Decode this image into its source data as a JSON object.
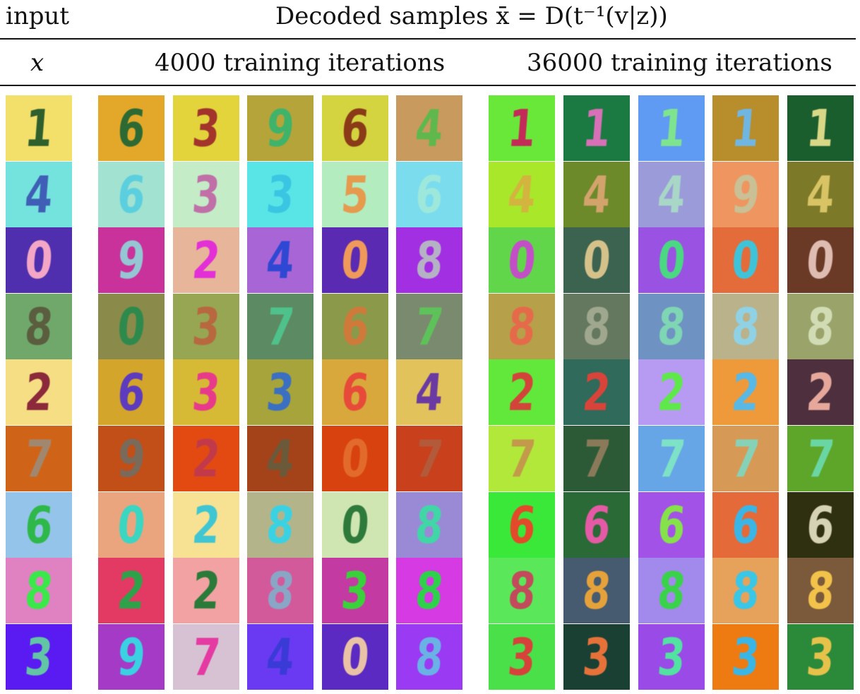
{
  "header": {
    "input_label": "input",
    "decoded_label": "Decoded samples x̄ = D(t⁻¹(v|z))",
    "x_label": "x",
    "group_4000_label": "4000 training iterations",
    "group_36000_label": "36000 training iterations"
  },
  "grid": {
    "rows": [
      {
        "input": {
          "digit": "1",
          "bg": "#f3e06b",
          "fg": "#2f5f2c"
        },
        "it4000": [
          {
            "digit": "6",
            "bg": "#e3a82a",
            "fg": "#2d6a33"
          },
          {
            "digit": "3",
            "bg": "#e2d43a",
            "fg": "#a2342b"
          },
          {
            "digit": "9",
            "bg": "#b5a43a",
            "fg": "#3fb36a"
          },
          {
            "digit": "6",
            "bg": "#d3d43f",
            "fg": "#8b3a18"
          },
          {
            "digit": "4",
            "bg": "#c99a5e",
            "fg": "#5fb84c"
          }
        ],
        "it36000": [
          {
            "digit": "1",
            "bg": "#6ae83a",
            "fg": "#c42a57"
          },
          {
            "digit": "1",
            "bg": "#1b7a42",
            "fg": "#d870b8"
          },
          {
            "digit": "1",
            "bg": "#5f9bf2",
            "fg": "#7ee58e"
          },
          {
            "digit": "1",
            "bg": "#b88d2b",
            "fg": "#6fb7e2"
          },
          {
            "digit": "1",
            "bg": "#1b5e2d",
            "fg": "#d9d887"
          }
        ]
      },
      {
        "input": {
          "digit": "4",
          "bg": "#74e2dd",
          "fg": "#3f5fb6"
        },
        "it4000": [
          {
            "digit": "6",
            "bg": "#a1e2d0",
            "fg": "#5ccfdf"
          },
          {
            "digit": "3",
            "bg": "#c3ecc7",
            "fg": "#c06fa7"
          },
          {
            "digit": "3",
            "bg": "#59e5e6",
            "fg": "#3ac6e2"
          },
          {
            "digit": "5",
            "bg": "#b2ecbf",
            "fg": "#e59a4e"
          },
          {
            "digit": "6",
            "bg": "#7bdcee",
            "fg": "#9de8db"
          }
        ],
        "it36000": [
          {
            "digit": "4",
            "bg": "#a9e72a",
            "fg": "#d2b43e"
          },
          {
            "digit": "4",
            "bg": "#6c8a2a",
            "fg": "#d2a36b"
          },
          {
            "digit": "4",
            "bg": "#9a9bd8",
            "fg": "#a8d6c7"
          },
          {
            "digit": "9",
            "bg": "#ee9560",
            "fg": "#c9c095"
          },
          {
            "digit": "4",
            "bg": "#7c7a28",
            "fg": "#d8c464"
          }
        ]
      },
      {
        "input": {
          "digit": "0",
          "bg": "#4f2fad",
          "fg": "#f4a6c6"
        },
        "it4000": [
          {
            "digit": "9",
            "bg": "#c8329a",
            "fg": "#95c6d4"
          },
          {
            "digit": "2",
            "bg": "#e6b59a",
            "fg": "#e22fd6"
          },
          {
            "digit": "4",
            "bg": "#a865d6",
            "fg": "#2f48d3"
          },
          {
            "digit": "0",
            "bg": "#5a2ab2",
            "fg": "#ef9a5a"
          },
          {
            "digit": "8",
            "bg": "#a22fe2",
            "fg": "#b6b2c6"
          }
        ],
        "it36000": [
          {
            "digit": "0",
            "bg": "#62d64b",
            "fg": "#c34fc6"
          },
          {
            "digit": "0",
            "bg": "#3c6250",
            "fg": "#d5c28a"
          },
          {
            "digit": "0",
            "bg": "#9a52e2",
            "fg": "#4ad883"
          },
          {
            "digit": "0",
            "bg": "#e46b3a",
            "fg": "#3fc3d8"
          },
          {
            "digit": "0",
            "bg": "#6b3a26",
            "fg": "#dfbcb2"
          }
        ]
      },
      {
        "input": {
          "digit": "8",
          "bg": "#6fa86a",
          "fg": "#5a5e3f"
        },
        "it4000": [
          {
            "digit": "0",
            "bg": "#8a8a4a",
            "fg": "#2e8a4c"
          },
          {
            "digit": "3",
            "bg": "#96a652",
            "fg": "#b8683f"
          },
          {
            "digit": "7",
            "bg": "#5c8a62",
            "fg": "#4ec28a"
          },
          {
            "digit": "6",
            "bg": "#8a9a4a",
            "fg": "#cf7a3a"
          },
          {
            "digit": "7",
            "bg": "#7a8a6e",
            "fg": "#5ec25a"
          }
        ],
        "it36000": [
          {
            "digit": "8",
            "bg": "#b7a04a",
            "fg": "#e56a4a"
          },
          {
            "digit": "8",
            "bg": "#63785e",
            "fg": "#9fa88e"
          },
          {
            "digit": "8",
            "bg": "#6e92c2",
            "fg": "#7ed6b4"
          },
          {
            "digit": "8",
            "bg": "#b9b28a",
            "fg": "#8fd2e6"
          },
          {
            "digit": "8",
            "bg": "#9aa36a",
            "fg": "#d2dcb4"
          }
        ]
      },
      {
        "input": {
          "digit": "2",
          "bg": "#f6de84",
          "fg": "#8b2a3a"
        },
        "it4000": [
          {
            "digit": "6",
            "bg": "#d3a52a",
            "fg": "#5c3bbe"
          },
          {
            "digit": "3",
            "bg": "#d6b935",
            "fg": "#e83a8a"
          },
          {
            "digit": "3",
            "bg": "#a6a43a",
            "fg": "#3a6fc2"
          },
          {
            "digit": "6",
            "bg": "#d9a83c",
            "fg": "#e84a3a"
          },
          {
            "digit": "4",
            "bg": "#e2c25a",
            "fg": "#6a3aa2"
          }
        ],
        "it36000": [
          {
            "digit": "2",
            "bg": "#62e83a",
            "fg": "#d2443a"
          },
          {
            "digit": "2",
            "bg": "#2f6a5a",
            "fg": "#d8443a"
          },
          {
            "digit": "2",
            "bg": "#b79af2",
            "fg": "#5ee84a"
          },
          {
            "digit": "2",
            "bg": "#ee9a3a",
            "fg": "#58b8e6"
          },
          {
            "digit": "2",
            "bg": "#4e2f3e",
            "fg": "#e6a89a"
          }
        ]
      },
      {
        "input": {
          "digit": "7",
          "bg": "#cf6418",
          "fg": "#a08870"
        },
        "it4000": [
          {
            "digit": "9",
            "bg": "#c24e18",
            "fg": "#7a6a5a"
          },
          {
            "digit": "2",
            "bg": "#e24a12",
            "fg": "#c23a4a"
          },
          {
            "digit": "4",
            "bg": "#a4421a",
            "fg": "#6a5a3a"
          },
          {
            "digit": "0",
            "bg": "#d8420e",
            "fg": "#e26a2a"
          },
          {
            "digit": "7",
            "bg": "#c8401c",
            "fg": "#b25a3a"
          }
        ],
        "it36000": [
          {
            "digit": "7",
            "bg": "#b2e83a",
            "fg": "#c29a4a"
          },
          {
            "digit": "7",
            "bg": "#2d5a36",
            "fg": "#8a7a5a"
          },
          {
            "digit": "7",
            "bg": "#66a6e6",
            "fg": "#7ee2c6"
          },
          {
            "digit": "7",
            "bg": "#d69a56",
            "fg": "#86d2b8"
          },
          {
            "digit": "7",
            "bg": "#5ea62a",
            "fg": "#6ad6a4"
          }
        ]
      },
      {
        "input": {
          "digit": "6",
          "bg": "#94c4ea",
          "fg": "#2fb84a"
        },
        "it4000": [
          {
            "digit": "0",
            "bg": "#eba57e",
            "fg": "#3ad6c2"
          },
          {
            "digit": "2",
            "bg": "#f6e292",
            "fg": "#40c6d2"
          },
          {
            "digit": "8",
            "bg": "#b4b48a",
            "fg": "#3ad2e2"
          },
          {
            "digit": "0",
            "bg": "#cfe6b2",
            "fg": "#2e7a3a"
          },
          {
            "digit": "8",
            "bg": "#9a8ad6",
            "fg": "#40d6a6"
          }
        ],
        "it36000": [
          {
            "digit": "6",
            "bg": "#3ae83a",
            "fg": "#e24a2a"
          },
          {
            "digit": "6",
            "bg": "#2a6a36",
            "fg": "#e45aa4"
          },
          {
            "digit": "6",
            "bg": "#a252e6",
            "fg": "#86e24a"
          },
          {
            "digit": "6",
            "bg": "#e46a3a",
            "fg": "#3ab6e6"
          },
          {
            "digit": "6",
            "bg": "#2f3010",
            "fg": "#d6d2b4"
          }
        ]
      },
      {
        "input": {
          "digit": "8",
          "bg": "#e082c2",
          "fg": "#3ae84a"
        },
        "it4000": [
          {
            "digit": "2",
            "bg": "#e23a62",
            "fg": "#2ea24a"
          },
          {
            "digit": "2",
            "bg": "#f2a2a2",
            "fg": "#2a7a3a"
          },
          {
            "digit": "8",
            "bg": "#d25a9a",
            "fg": "#8aa6c6"
          },
          {
            "digit": "3",
            "bg": "#c23aa2",
            "fg": "#3ad23a"
          },
          {
            "digit": "8",
            "bg": "#d63ae2",
            "fg": "#2ed24a"
          }
        ],
        "it36000": [
          {
            "digit": "8",
            "bg": "#5ae85a",
            "fg": "#c24a5a"
          },
          {
            "digit": "8",
            "bg": "#465a70",
            "fg": "#e6a23a"
          },
          {
            "digit": "8",
            "bg": "#a28aec",
            "fg": "#3ad24a"
          },
          {
            "digit": "8",
            "bg": "#e6a25a",
            "fg": "#3ac6e6"
          },
          {
            "digit": "8",
            "bg": "#7a5a3a",
            "fg": "#f2c24a"
          }
        ]
      },
      {
        "input": {
          "digit": "3",
          "bg": "#5a1af2",
          "fg": "#62c6a6"
        },
        "it4000": [
          {
            "digit": "9",
            "bg": "#a43ac6",
            "fg": "#3ad2e2"
          },
          {
            "digit": "7",
            "bg": "#d6c2d2",
            "fg": "#e43aa2"
          },
          {
            "digit": "4",
            "bg": "#6a3af2",
            "fg": "#3a3ad6"
          },
          {
            "digit": "0",
            "bg": "#5a2ac2",
            "fg": "#eac2a6"
          },
          {
            "digit": "8",
            "bg": "#9a3af2",
            "fg": "#6ab2e6"
          }
        ],
        "it36000": [
          {
            "digit": "3",
            "bg": "#4ae04a",
            "fg": "#d6423a"
          },
          {
            "digit": "3",
            "bg": "#1a4034",
            "fg": "#e6723a"
          },
          {
            "digit": "3",
            "bg": "#9a4ae6",
            "fg": "#52e2a2"
          },
          {
            "digit": "3",
            "bg": "#ee7a12",
            "fg": "#3ab6e6"
          },
          {
            "digit": "3",
            "bg": "#2a8a3a",
            "fg": "#e6c24a"
          }
        ]
      }
    ]
  }
}
